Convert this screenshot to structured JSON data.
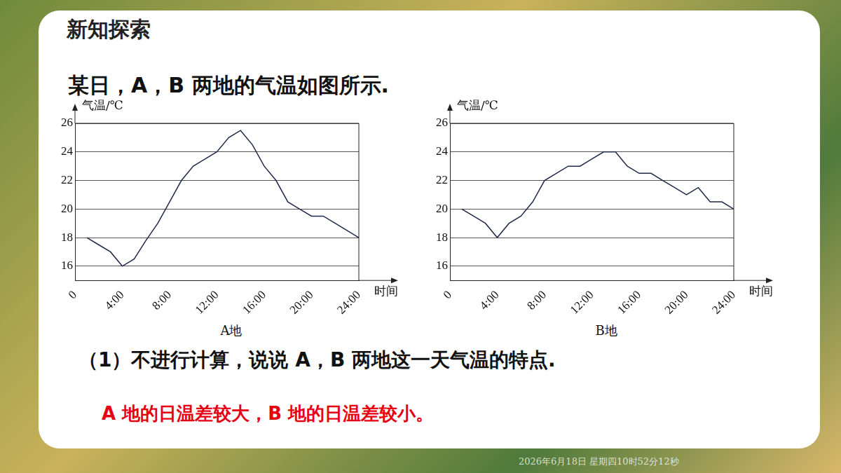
{
  "slide": {
    "heading": "新知探索",
    "intro": "某日，A，B 两地的气温如图所示.",
    "question": "（1）不进行计算，说说 A，B 两地这一天气温的特点.",
    "answer": "A 地的日温差较大，B 地的日温差较小。",
    "timestamp": "2026年6月18日 星期四10时52分12秒"
  },
  "chart_data": [
    {
      "type": "line",
      "title": "A地",
      "x_label": "时间",
      "y_label": "气温/℃",
      "x": [
        1,
        2,
        3,
        4,
        5,
        6,
        7,
        8,
        9,
        10,
        11,
        12,
        13,
        14,
        15,
        16,
        17,
        18,
        19,
        20,
        21,
        22,
        23,
        24
      ],
      "values": [
        18,
        17.5,
        17,
        16,
        16.5,
        17.8,
        19,
        20.5,
        22,
        23,
        23.5,
        24,
        25,
        25.5,
        24.5,
        23,
        22,
        20.5,
        20,
        19.5,
        19.5,
        19,
        18.5,
        18
      ],
      "color": "#1f2a4a",
      "marker": "none",
      "line_style": "solid",
      "xlim": [
        0,
        24
      ],
      "xticks": [
        {
          "value": 0,
          "label": "0"
        },
        {
          "value": 4,
          "label": "4:00"
        },
        {
          "value": 8,
          "label": "8:00"
        },
        {
          "value": 12,
          "label": "12:00"
        },
        {
          "value": 16,
          "label": "16:00"
        },
        {
          "value": 20,
          "label": "20:00"
        },
        {
          "value": 24,
          "label": "24:00"
        }
      ],
      "ylim": [
        15,
        26
      ],
      "yticks": [
        16,
        18,
        20,
        22,
        24,
        26
      ],
      "grid": true
    },
    {
      "type": "line",
      "title": "B地",
      "x_label": "时间",
      "y_label": "气温/℃",
      "x": [
        1,
        2,
        3,
        4,
        5,
        6,
        7,
        8,
        9,
        10,
        11,
        12,
        13,
        14,
        15,
        16,
        17,
        18,
        19,
        20,
        21,
        22,
        23,
        24
      ],
      "values": [
        20,
        19.5,
        19,
        18,
        19,
        19.5,
        20.5,
        22,
        22.5,
        23,
        23,
        23.5,
        24,
        24,
        23,
        22.5,
        22.5,
        22,
        21.5,
        21,
        21.5,
        20.5,
        20.5,
        20
      ],
      "color": "#1f2a4a",
      "marker": "none",
      "line_style": "solid",
      "xlim": [
        0,
        24
      ],
      "xticks": [
        {
          "value": 0,
          "label": "0"
        },
        {
          "value": 4,
          "label": "4:00"
        },
        {
          "value": 8,
          "label": "8:00"
        },
        {
          "value": 12,
          "label": "12:00"
        },
        {
          "value": 16,
          "label": "16:00"
        },
        {
          "value": 20,
          "label": "20:00"
        },
        {
          "value": 24,
          "label": "24:00"
        }
      ],
      "ylim": [
        15,
        26
      ],
      "yticks": [
        16,
        18,
        20,
        22,
        24,
        26
      ],
      "grid": true
    }
  ]
}
